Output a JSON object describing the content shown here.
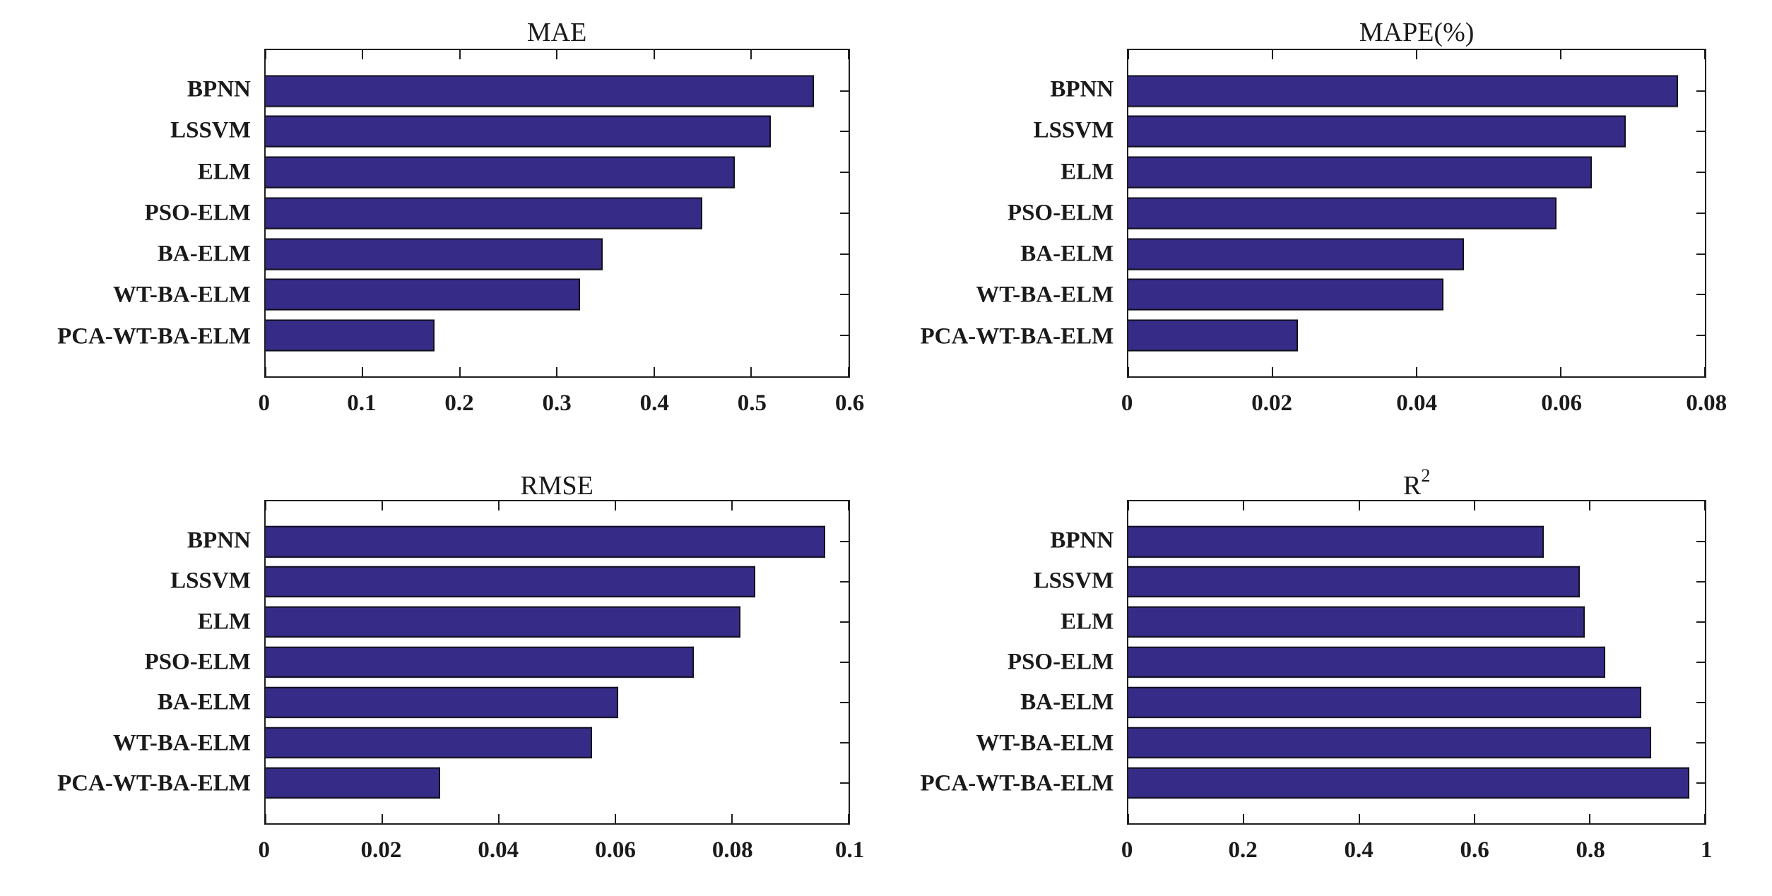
{
  "figure": {
    "description": "2x2 grid of horizontal bar charts comparing forecasting models",
    "models": [
      "BPNN",
      "LSSVM",
      "ELM",
      "PSO-ELM",
      "BA-ELM",
      "WT-BA-ELM",
      "PCA-WT-BA-ELM"
    ]
  },
  "colors": {
    "bar_fill": "#362c87",
    "bar_border": "#11101f",
    "axis": "#1f1f1f",
    "text": "#1a1a1a",
    "background": "#ffffff"
  },
  "chart_data": [
    {
      "type": "bar",
      "orientation": "horizontal",
      "title": "MAE",
      "title_sup": "",
      "categories": [
        "BPNN",
        "LSSVM",
        "ELM",
        "PSO-ELM",
        "BA-ELM",
        "WT-BA-ELM",
        "PCA-WT-BA-ELM"
      ],
      "values": [
        0.565,
        0.52,
        0.483,
        0.45,
        0.347,
        0.324,
        0.174
      ],
      "xlim": [
        0,
        0.6
      ],
      "xticks": [
        0,
        0.1,
        0.2,
        0.3,
        0.4,
        0.5,
        0.6
      ],
      "xtick_labels": [
        "0",
        "0.1",
        "0.2",
        "0.3",
        "0.4",
        "0.5",
        "0.6"
      ],
      "grid": false,
      "legend": "none"
    },
    {
      "type": "bar",
      "orientation": "horizontal",
      "title": "MAPE(%)",
      "title_sup": "",
      "categories": [
        "BPNN",
        "LSSVM",
        "ELM",
        "PSO-ELM",
        "BA-ELM",
        "WT-BA-ELM",
        "PCA-WT-BA-ELM"
      ],
      "values": [
        0.0763,
        0.069,
        0.0643,
        0.0594,
        0.0466,
        0.0437,
        0.0235
      ],
      "xlim": [
        0,
        0.08
      ],
      "xticks": [
        0,
        0.02,
        0.04,
        0.06,
        0.08
      ],
      "xtick_labels": [
        "0",
        "0.02",
        "0.04",
        "0.06",
        "0.08"
      ],
      "grid": false,
      "legend": "none"
    },
    {
      "type": "bar",
      "orientation": "horizontal",
      "title": "RMSE",
      "title_sup": "",
      "categories": [
        "BPNN",
        "LSSVM",
        "ELM",
        "PSO-ELM",
        "BA-ELM",
        "WT-BA-ELM",
        "PCA-WT-BA-ELM"
      ],
      "values": [
        0.096,
        0.084,
        0.0815,
        0.0735,
        0.0605,
        0.056,
        0.03
      ],
      "xlim": [
        0,
        0.1
      ],
      "xticks": [
        0,
        0.02,
        0.04,
        0.06,
        0.08,
        0.1
      ],
      "xtick_labels": [
        "0",
        "0.02",
        "0.04",
        "0.06",
        "0.08",
        "0.1"
      ],
      "grid": false,
      "legend": "none"
    },
    {
      "type": "bar",
      "orientation": "horizontal",
      "title": "R",
      "title_sup": "2",
      "categories": [
        "BPNN",
        "LSSVM",
        "ELM",
        "PSO-ELM",
        "BA-ELM",
        "WT-BA-ELM",
        "PCA-WT-BA-ELM"
      ],
      "values": [
        0.72,
        0.783,
        0.792,
        0.827,
        0.889,
        0.907,
        0.973
      ],
      "xlim": [
        0,
        1
      ],
      "xticks": [
        0,
        0.2,
        0.4,
        0.6,
        0.8,
        1
      ],
      "xtick_labels": [
        "0",
        "0.2",
        "0.4",
        "0.6",
        "0.8",
        "1"
      ],
      "grid": false,
      "legend": "none"
    }
  ]
}
